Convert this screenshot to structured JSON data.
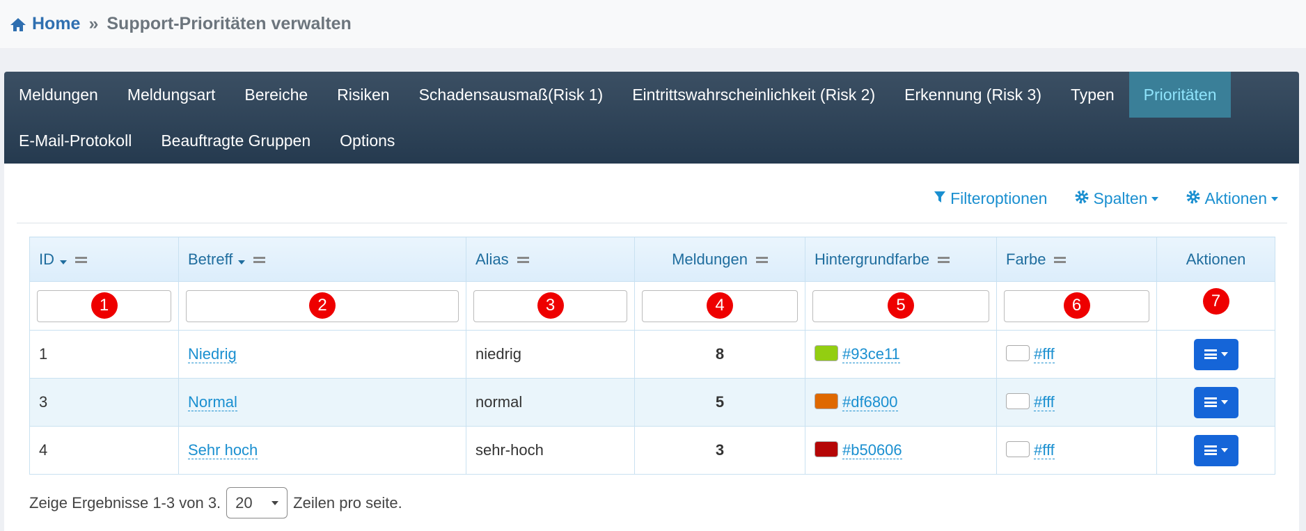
{
  "breadcrumb": {
    "home": "Home",
    "separator": "»",
    "current": "Support-Prioritäten verwalten"
  },
  "nav": {
    "tabs": [
      [
        "Meldungen",
        "Meldungsart",
        "Bereiche",
        "Risiken",
        "Schadensausmaß(Risk 1)",
        "Eintrittswahrscheinlichkeit (Risk 2)",
        "Erkennung (Risk 3)",
        "Typen",
        "Prioritäten"
      ],
      [
        "E-Mail-Protokoll",
        "Beauftragte Gruppen",
        "Options"
      ]
    ],
    "active_row": 0,
    "active_tab": 8
  },
  "toolbar": [
    "Filteroptionen",
    "Spalten",
    "Aktionen"
  ],
  "table": {
    "columns": [
      "ID",
      "Betreff",
      "Alias",
      "Meldungen",
      "Hintergrundfarbe",
      "Farbe",
      "Aktionen"
    ],
    "sortable": [
      true,
      true,
      false,
      false,
      false,
      false,
      false
    ],
    "markers": [
      "1",
      "2",
      "3",
      "4",
      "5",
      "6",
      "7"
    ],
    "rows": [
      [
        "1",
        "Niedrig",
        "niedrig",
        "8",
        "#93ce11",
        "#fff"
      ],
      [
        "3",
        "Normal",
        "normal",
        "5",
        "#df6800",
        "#fff"
      ],
      [
        "4",
        "Sehr hoch",
        "sehr-hoch",
        "3",
        "#b50606",
        "#fff"
      ]
    ]
  },
  "footer": {
    "before": "Zeige Ergebnisse 1-3 von 3.",
    "page_size": "20",
    "after": "Zeilen pro seite."
  }
}
